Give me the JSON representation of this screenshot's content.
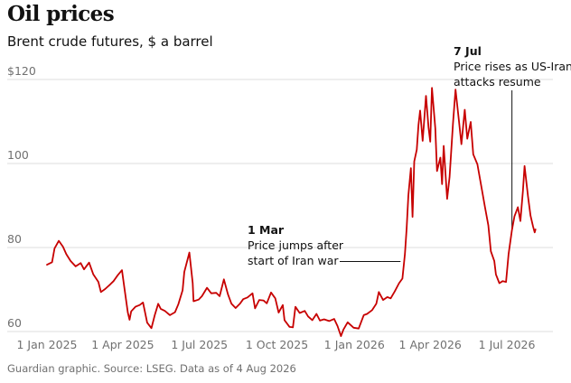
{
  "title": "Oil prices",
  "subtitle": "Brent crude futures, $ a barrel",
  "footer": "Guardian graphic. Source: LSEG. Data as of 4 Aug 2026",
  "colors": {
    "line": "#c70000",
    "grid": "#dcdcdc",
    "text": "#121212",
    "muted": "#707070"
  },
  "chart_data": {
    "type": "line",
    "title": "Oil prices",
    "subtitle": "Brent crude futures, $ a barrel",
    "xlabel": "",
    "ylabel": "",
    "ylim": [
      60,
      120
    ],
    "xlim": [
      "2025-01-01",
      "2026-08-15"
    ],
    "grid": "horizontal",
    "legend": "none",
    "yticks": [
      60,
      80,
      100,
      120
    ],
    "ytick_labels": [
      "60",
      "80",
      "100",
      "$120"
    ],
    "xticks": [
      "2025-01-01",
      "2025-04-01",
      "2025-07-01",
      "2025-10-01",
      "2026-01-01",
      "2026-04-01",
      "2026-07-01"
    ],
    "xtick_labels": [
      "1 Jan 2025",
      "1 Apr 2025",
      "1 Jul 2025",
      "1 Oct 2025",
      "1 Jan 2026",
      "1 Apr 2026",
      "1 Jul 2026"
    ],
    "series": [
      {
        "color": "#c70000",
        "points": [
          [
            "2025-01-01",
            75.9
          ],
          [
            "2025-01-07",
            76.5
          ],
          [
            "2025-01-10",
            79.8
          ],
          [
            "2025-01-15",
            81.6
          ],
          [
            "2025-01-20",
            80.2
          ],
          [
            "2025-01-24",
            78.4
          ],
          [
            "2025-01-29",
            76.8
          ],
          [
            "2025-02-04",
            75.5
          ],
          [
            "2025-02-10",
            76.3
          ],
          [
            "2025-02-14",
            74.8
          ],
          [
            "2025-02-20",
            76.4
          ],
          [
            "2025-02-25",
            73.6
          ],
          [
            "2025-03-03",
            71.8
          ],
          [
            "2025-03-06",
            69.4
          ],
          [
            "2025-03-11",
            70.1
          ],
          [
            "2025-03-17",
            71.2
          ],
          [
            "2025-03-21",
            72.0
          ],
          [
            "2025-03-26",
            73.4
          ],
          [
            "2025-03-31",
            74.6
          ],
          [
            "2025-04-03",
            70.2
          ],
          [
            "2025-04-07",
            64.5
          ],
          [
            "2025-04-09",
            62.8
          ],
          [
            "2025-04-11",
            64.8
          ],
          [
            "2025-04-16",
            65.9
          ],
          [
            "2025-04-21",
            66.3
          ],
          [
            "2025-04-25",
            66.9
          ],
          [
            "2025-04-30",
            62.1
          ],
          [
            "2025-05-05",
            60.8
          ],
          [
            "2025-05-09",
            63.9
          ],
          [
            "2025-05-13",
            66.6
          ],
          [
            "2025-05-16",
            65.4
          ],
          [
            "2025-05-21",
            64.9
          ],
          [
            "2025-05-27",
            63.9
          ],
          [
            "2025-06-02",
            64.6
          ],
          [
            "2025-06-06",
            66.5
          ],
          [
            "2025-06-11",
            69.8
          ],
          [
            "2025-06-13",
            74.2
          ],
          [
            "2025-06-19",
            78.8
          ],
          [
            "2025-06-23",
            71.5
          ],
          [
            "2025-06-24",
            67.2
          ],
          [
            "2025-06-30",
            67.6
          ],
          [
            "2025-07-04",
            68.4
          ],
          [
            "2025-07-10",
            70.4
          ],
          [
            "2025-07-15",
            69.1
          ],
          [
            "2025-07-21",
            69.2
          ],
          [
            "2025-07-25",
            68.4
          ],
          [
            "2025-07-30",
            72.4
          ],
          [
            "2025-08-04",
            68.8
          ],
          [
            "2025-08-08",
            66.6
          ],
          [
            "2025-08-13",
            65.6
          ],
          [
            "2025-08-18",
            66.6
          ],
          [
            "2025-08-22",
            67.7
          ],
          [
            "2025-08-27",
            68.1
          ],
          [
            "2025-09-02",
            69.1
          ],
          [
            "2025-09-05",
            65.5
          ],
          [
            "2025-09-10",
            67.5
          ],
          [
            "2025-09-15",
            67.4
          ],
          [
            "2025-09-19",
            66.7
          ],
          [
            "2025-09-24",
            69.3
          ],
          [
            "2025-09-29",
            67.9
          ],
          [
            "2025-10-03",
            64.5
          ],
          [
            "2025-10-08",
            66.3
          ],
          [
            "2025-10-10",
            62.7
          ],
          [
            "2025-10-16",
            61.1
          ],
          [
            "2025-10-20",
            61.0
          ],
          [
            "2025-10-23",
            65.9
          ],
          [
            "2025-10-28",
            64.4
          ],
          [
            "2025-11-03",
            64.9
          ],
          [
            "2025-11-07",
            63.6
          ],
          [
            "2025-11-12",
            62.7
          ],
          [
            "2025-11-17",
            64.2
          ],
          [
            "2025-11-21",
            62.6
          ],
          [
            "2025-11-26",
            62.9
          ],
          [
            "2025-12-02",
            62.5
          ],
          [
            "2025-12-08",
            63.0
          ],
          [
            "2025-12-12",
            61.3
          ],
          [
            "2025-12-16",
            58.9
          ],
          [
            "2025-12-19",
            60.5
          ],
          [
            "2025-12-24",
            62.2
          ],
          [
            "2025-12-31",
            60.9
          ],
          [
            "2026-01-06",
            60.7
          ],
          [
            "2026-01-12",
            63.9
          ],
          [
            "2026-01-16",
            64.2
          ],
          [
            "2026-01-22",
            65.1
          ],
          [
            "2026-01-27",
            66.6
          ],
          [
            "2026-01-30",
            69.4
          ],
          [
            "2026-02-04",
            67.5
          ],
          [
            "2026-02-09",
            68.2
          ],
          [
            "2026-02-13",
            67.9
          ],
          [
            "2026-02-18",
            69.6
          ],
          [
            "2026-02-23",
            71.5
          ],
          [
            "2026-02-27",
            72.6
          ],
          [
            "2026-03-02",
            78.5
          ],
          [
            "2026-03-04",
            84.6
          ],
          [
            "2026-03-06",
            92.4
          ],
          [
            "2026-03-09",
            98.9
          ],
          [
            "2026-03-11",
            87.3
          ],
          [
            "2026-03-13",
            100.5
          ],
          [
            "2026-03-16",
            103.3
          ],
          [
            "2026-03-18",
            109.2
          ],
          [
            "2026-03-20",
            112.6
          ],
          [
            "2026-03-23",
            105.4
          ],
          [
            "2026-03-25",
            110.8
          ],
          [
            "2026-03-27",
            116.1
          ],
          [
            "2026-03-30",
            108.6
          ],
          [
            "2026-04-01",
            105.2
          ],
          [
            "2026-04-03",
            118.0
          ],
          [
            "2026-04-07",
            108.4
          ],
          [
            "2026-04-09",
            98.2
          ],
          [
            "2026-04-13",
            101.4
          ],
          [
            "2026-04-15",
            95.1
          ],
          [
            "2026-04-17",
            104.2
          ],
          [
            "2026-04-21",
            91.6
          ],
          [
            "2026-04-24",
            96.8
          ],
          [
            "2026-04-28",
            109.6
          ],
          [
            "2026-05-01",
            117.6
          ],
          [
            "2026-05-05",
            110.3
          ],
          [
            "2026-05-08",
            104.6
          ],
          [
            "2026-05-12",
            112.8
          ],
          [
            "2026-05-15",
            105.9
          ],
          [
            "2026-05-19",
            109.9
          ],
          [
            "2026-05-22",
            102.2
          ],
          [
            "2026-05-27",
            99.8
          ],
          [
            "2026-06-01",
            94.1
          ],
          [
            "2026-06-05",
            89.6
          ],
          [
            "2026-06-09",
            85.3
          ],
          [
            "2026-06-12",
            79.1
          ],
          [
            "2026-06-16",
            76.8
          ],
          [
            "2026-06-18",
            73.6
          ],
          [
            "2026-06-22",
            71.5
          ],
          [
            "2026-06-26",
            72.0
          ],
          [
            "2026-06-30",
            71.8
          ],
          [
            "2026-07-03",
            78.4
          ],
          [
            "2026-07-07",
            84.1
          ],
          [
            "2026-07-10",
            87.4
          ],
          [
            "2026-07-14",
            89.6
          ],
          [
            "2026-07-17",
            86.3
          ],
          [
            "2026-07-20",
            93.5
          ],
          [
            "2026-07-22",
            99.4
          ],
          [
            "2026-07-26",
            92.2
          ],
          [
            "2026-07-29",
            87.6
          ],
          [
            "2026-08-01",
            85.1
          ],
          [
            "2026-08-03",
            83.6
          ],
          [
            "2026-08-04",
            84.3
          ]
        ]
      }
    ],
    "annotations": [
      {
        "date": "2026-03-01",
        "label": "1 Mar",
        "text": [
          "Price jumps after",
          "start of Iran war"
        ]
      },
      {
        "date": "2026-07-07",
        "label": "7 Jul",
        "text": [
          "Price rises as US-Iran",
          "attacks resume"
        ]
      }
    ]
  }
}
